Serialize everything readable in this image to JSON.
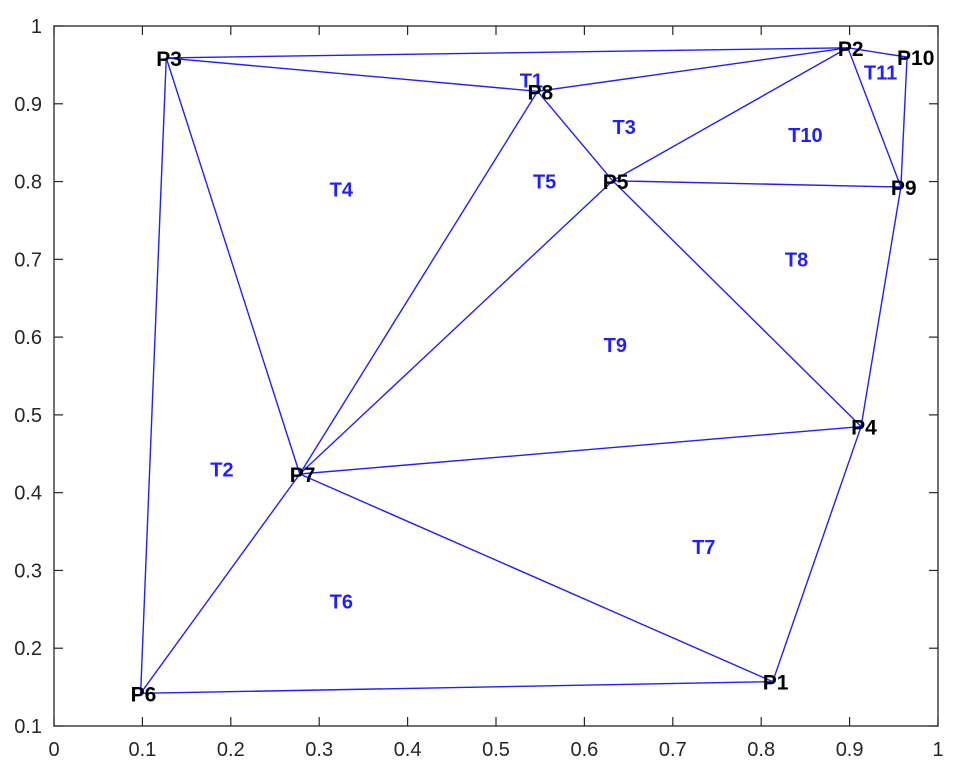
{
  "chart_data": {
    "type": "triangulation",
    "title": "",
    "xlabel": "",
    "ylabel": "",
    "xlim": [
      0,
      1
    ],
    "ylim": [
      0.1,
      1
    ],
    "grid": false,
    "x_ticks": [
      "0",
      "0.1",
      "0.2",
      "0.3",
      "0.4",
      "0.5",
      "0.6",
      "0.7",
      "0.8",
      "0.9",
      "1"
    ],
    "x_tick_values": [
      0,
      0.1,
      0.2,
      0.3,
      0.4,
      0.5,
      0.6,
      0.7,
      0.8,
      0.9,
      1
    ],
    "y_ticks": [
      "0.1",
      "0.2",
      "0.3",
      "0.4",
      "0.5",
      "0.6",
      "0.7",
      "0.8",
      "0.9",
      "1"
    ],
    "y_tick_values": [
      0.1,
      0.2,
      0.3,
      0.4,
      0.5,
      0.6,
      0.7,
      0.8,
      0.9,
      1
    ],
    "edge_color": "#1f1fff",
    "triangle_label_color": "#1f1fff",
    "point_label_color": "#000000",
    "points": [
      {
        "label": "P1",
        "x": 0.813,
        "y": 0.157
      },
      {
        "label": "P2",
        "x": 0.898,
        "y": 0.972
      },
      {
        "label": "P3",
        "x": 0.127,
        "y": 0.959
      },
      {
        "label": "P4",
        "x": 0.913,
        "y": 0.485
      },
      {
        "label": "P5",
        "x": 0.632,
        "y": 0.801
      },
      {
        "label": "P6",
        "x": 0.098,
        "y": 0.142
      },
      {
        "label": "P7",
        "x": 0.278,
        "y": 0.424
      },
      {
        "label": "P8",
        "x": 0.547,
        "y": 0.916
      },
      {
        "label": "P9",
        "x": 0.958,
        "y": 0.793
      },
      {
        "label": "P10",
        "x": 0.965,
        "y": 0.96
      }
    ],
    "triangles": [
      {
        "label": "T1",
        "vertices": [
          "P3",
          "P2",
          "P8"
        ],
        "label_x": 0.54,
        "label_y": 0.93
      },
      {
        "label": "T2",
        "vertices": [
          "P3",
          "P7",
          "P6"
        ],
        "label_x": 0.19,
        "label_y": 0.43
      },
      {
        "label": "T3",
        "vertices": [
          "P8",
          "P2",
          "P5"
        ],
        "label_x": 0.645,
        "label_y": 0.87
      },
      {
        "label": "T4",
        "vertices": [
          "P3",
          "P8",
          "P7"
        ],
        "label_x": 0.325,
        "label_y": 0.79
      },
      {
        "label": "T5",
        "vertices": [
          "P8",
          "P5",
          "P7"
        ],
        "label_x": 0.555,
        "label_y": 0.8
      },
      {
        "label": "T6",
        "vertices": [
          "P6",
          "P7",
          "P1"
        ],
        "label_x": 0.325,
        "label_y": 0.26
      },
      {
        "label": "T7",
        "vertices": [
          "P7",
          "P4",
          "P1"
        ],
        "label_x": 0.735,
        "label_y": 0.33
      },
      {
        "label": "T8",
        "vertices": [
          "P5",
          "P9",
          "P4"
        ],
        "label_x": 0.84,
        "label_y": 0.7
      },
      {
        "label": "T9",
        "vertices": [
          "P7",
          "P5",
          "P4"
        ],
        "label_x": 0.635,
        "label_y": 0.59
      },
      {
        "label": "T10",
        "vertices": [
          "P2",
          "P9",
          "P5"
        ],
        "label_x": 0.85,
        "label_y": 0.86
      },
      {
        "label": "T11",
        "vertices": [
          "P2",
          "P10",
          "P9"
        ],
        "label_x": 0.935,
        "label_y": 0.94
      }
    ]
  }
}
